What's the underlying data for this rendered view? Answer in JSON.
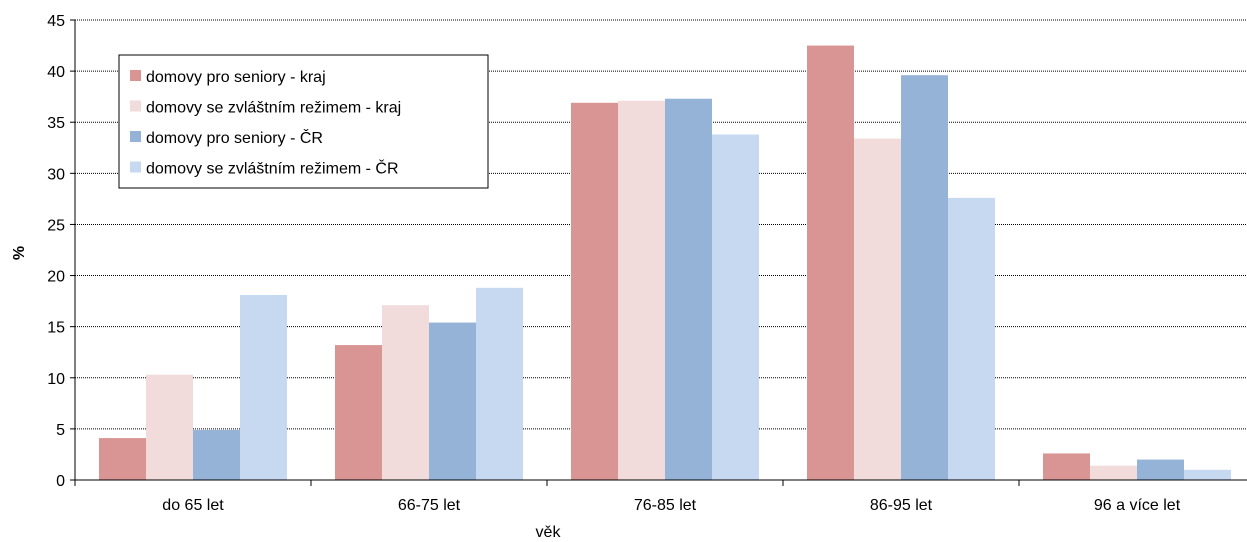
{
  "chart_data": {
    "type": "bar",
    "title": "",
    "xlabel": "věk",
    "ylabel": "%",
    "ylim": [
      0,
      45
    ],
    "yticks": [
      0,
      5,
      10,
      15,
      20,
      25,
      30,
      35,
      40,
      45
    ],
    "grid": true,
    "legend_position": "top-left",
    "categories": [
      "do 65 let",
      "66-75 let",
      "76-85 let",
      "86-95 let",
      "96 a více let"
    ],
    "series": [
      {
        "name": "domovy pro seniory - kraj",
        "color": "#d99594",
        "values": [
          4.1,
          13.2,
          36.9,
          42.5,
          2.6
        ]
      },
      {
        "name": "domovy se zvláštním režimem - kraj",
        "color": "#f2dbdb",
        "values": [
          10.3,
          17.1,
          37.1,
          33.4,
          1.4
        ]
      },
      {
        "name": "domovy pro seniory - ČR",
        "color": "#95b3d7",
        "values": [
          4.9,
          15.4,
          37.3,
          39.6,
          2.0
        ]
      },
      {
        "name": "domovy se zvláštním režimem - ČR",
        "color": "#c6d9f0",
        "values": [
          18.1,
          18.8,
          33.8,
          27.6,
          1.0
        ]
      }
    ]
  }
}
